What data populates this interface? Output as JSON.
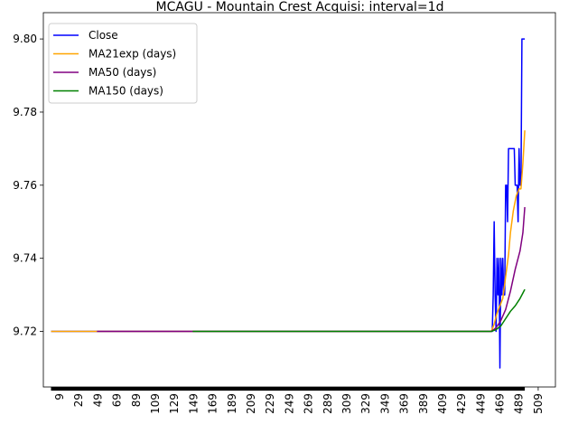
{
  "chart_data": {
    "type": "line",
    "title": "MCAGU - Mountain Crest Acquisi: interval=1d",
    "xlabel": "",
    "ylabel": "",
    "xlim": [
      -8,
      527
    ],
    "ylim": [
      9.7048,
      9.8072
    ],
    "x_ticks": [
      9,
      29,
      49,
      69,
      89,
      109,
      129,
      149,
      169,
      189,
      209,
      229,
      249,
      269,
      289,
      309,
      329,
      349,
      369,
      389,
      409,
      429,
      449,
      469,
      489,
      509
    ],
    "y_ticks": [
      9.72,
      9.74,
      9.76,
      9.78,
      9.8
    ],
    "y_tick_labels": [
      "9.72",
      "9.74",
      "9.76",
      "9.78",
      "9.80"
    ],
    "grid": false,
    "legend_position": "top-left",
    "series": [
      {
        "name": "Close",
        "color": "#0000ff",
        "points": [
          [
            0,
            9.72
          ],
          [
            460,
            9.72
          ],
          [
            461,
            9.72
          ],
          [
            462,
            9.73
          ],
          [
            463,
            9.75
          ],
          [
            464,
            9.73
          ],
          [
            465,
            9.72
          ],
          [
            466,
            9.74
          ],
          [
            467,
            9.73
          ],
          [
            468,
            9.74
          ],
          [
            469,
            9.71
          ],
          [
            470,
            9.74
          ],
          [
            471,
            9.73
          ],
          [
            472,
            9.74
          ],
          [
            473,
            9.73
          ],
          [
            474,
            9.73
          ],
          [
            475,
            9.76
          ],
          [
            476,
            9.76
          ],
          [
            477,
            9.75
          ],
          [
            478,
            9.77
          ],
          [
            479,
            9.77
          ],
          [
            480,
            9.77
          ],
          [
            481,
            9.77
          ],
          [
            482,
            9.77
          ],
          [
            483,
            9.77
          ],
          [
            484,
            9.77
          ],
          [
            485,
            9.76
          ],
          [
            486,
            9.76
          ],
          [
            487,
            9.76
          ],
          [
            488,
            9.75
          ],
          [
            489,
            9.77
          ],
          [
            490,
            9.76
          ],
          [
            491,
            9.76
          ],
          [
            492,
            9.8
          ],
          [
            493,
            9.8
          ],
          [
            494,
            9.8
          ],
          [
            495,
            9.8
          ]
        ]
      },
      {
        "name": "MA21exp (days)",
        "color": "#ffa500",
        "points": [
          [
            0,
            9.72
          ],
          [
            460,
            9.72
          ],
          [
            463,
            9.722
          ],
          [
            466,
            9.725
          ],
          [
            469,
            9.727
          ],
          [
            472,
            9.729
          ],
          [
            475,
            9.735
          ],
          [
            478,
            9.741
          ],
          [
            480,
            9.747
          ],
          [
            483,
            9.753
          ],
          [
            486,
            9.757
          ],
          [
            489,
            9.759
          ],
          [
            491,
            9.759
          ],
          [
            493,
            9.766
          ],
          [
            495,
            9.775
          ]
        ]
      },
      {
        "name": "MA50 (days)",
        "color": "#800080",
        "points": [
          [
            48,
            9.72
          ],
          [
            460,
            9.72
          ],
          [
            465,
            9.721
          ],
          [
            470,
            9.723
          ],
          [
            475,
            9.726
          ],
          [
            480,
            9.731
          ],
          [
            485,
            9.737
          ],
          [
            490,
            9.742
          ],
          [
            493,
            9.747
          ],
          [
            495,
            9.754
          ]
        ]
      },
      {
        "name": "MA150 (days)",
        "color": "#008000",
        "points": [
          [
            148,
            9.72
          ],
          [
            460,
            9.72
          ],
          [
            465,
            9.7205
          ],
          [
            470,
            9.7215
          ],
          [
            475,
            9.7235
          ],
          [
            480,
            9.7255
          ],
          [
            485,
            9.727
          ],
          [
            490,
            9.729
          ],
          [
            493,
            9.7305
          ],
          [
            495,
            9.7315
          ]
        ]
      }
    ]
  }
}
